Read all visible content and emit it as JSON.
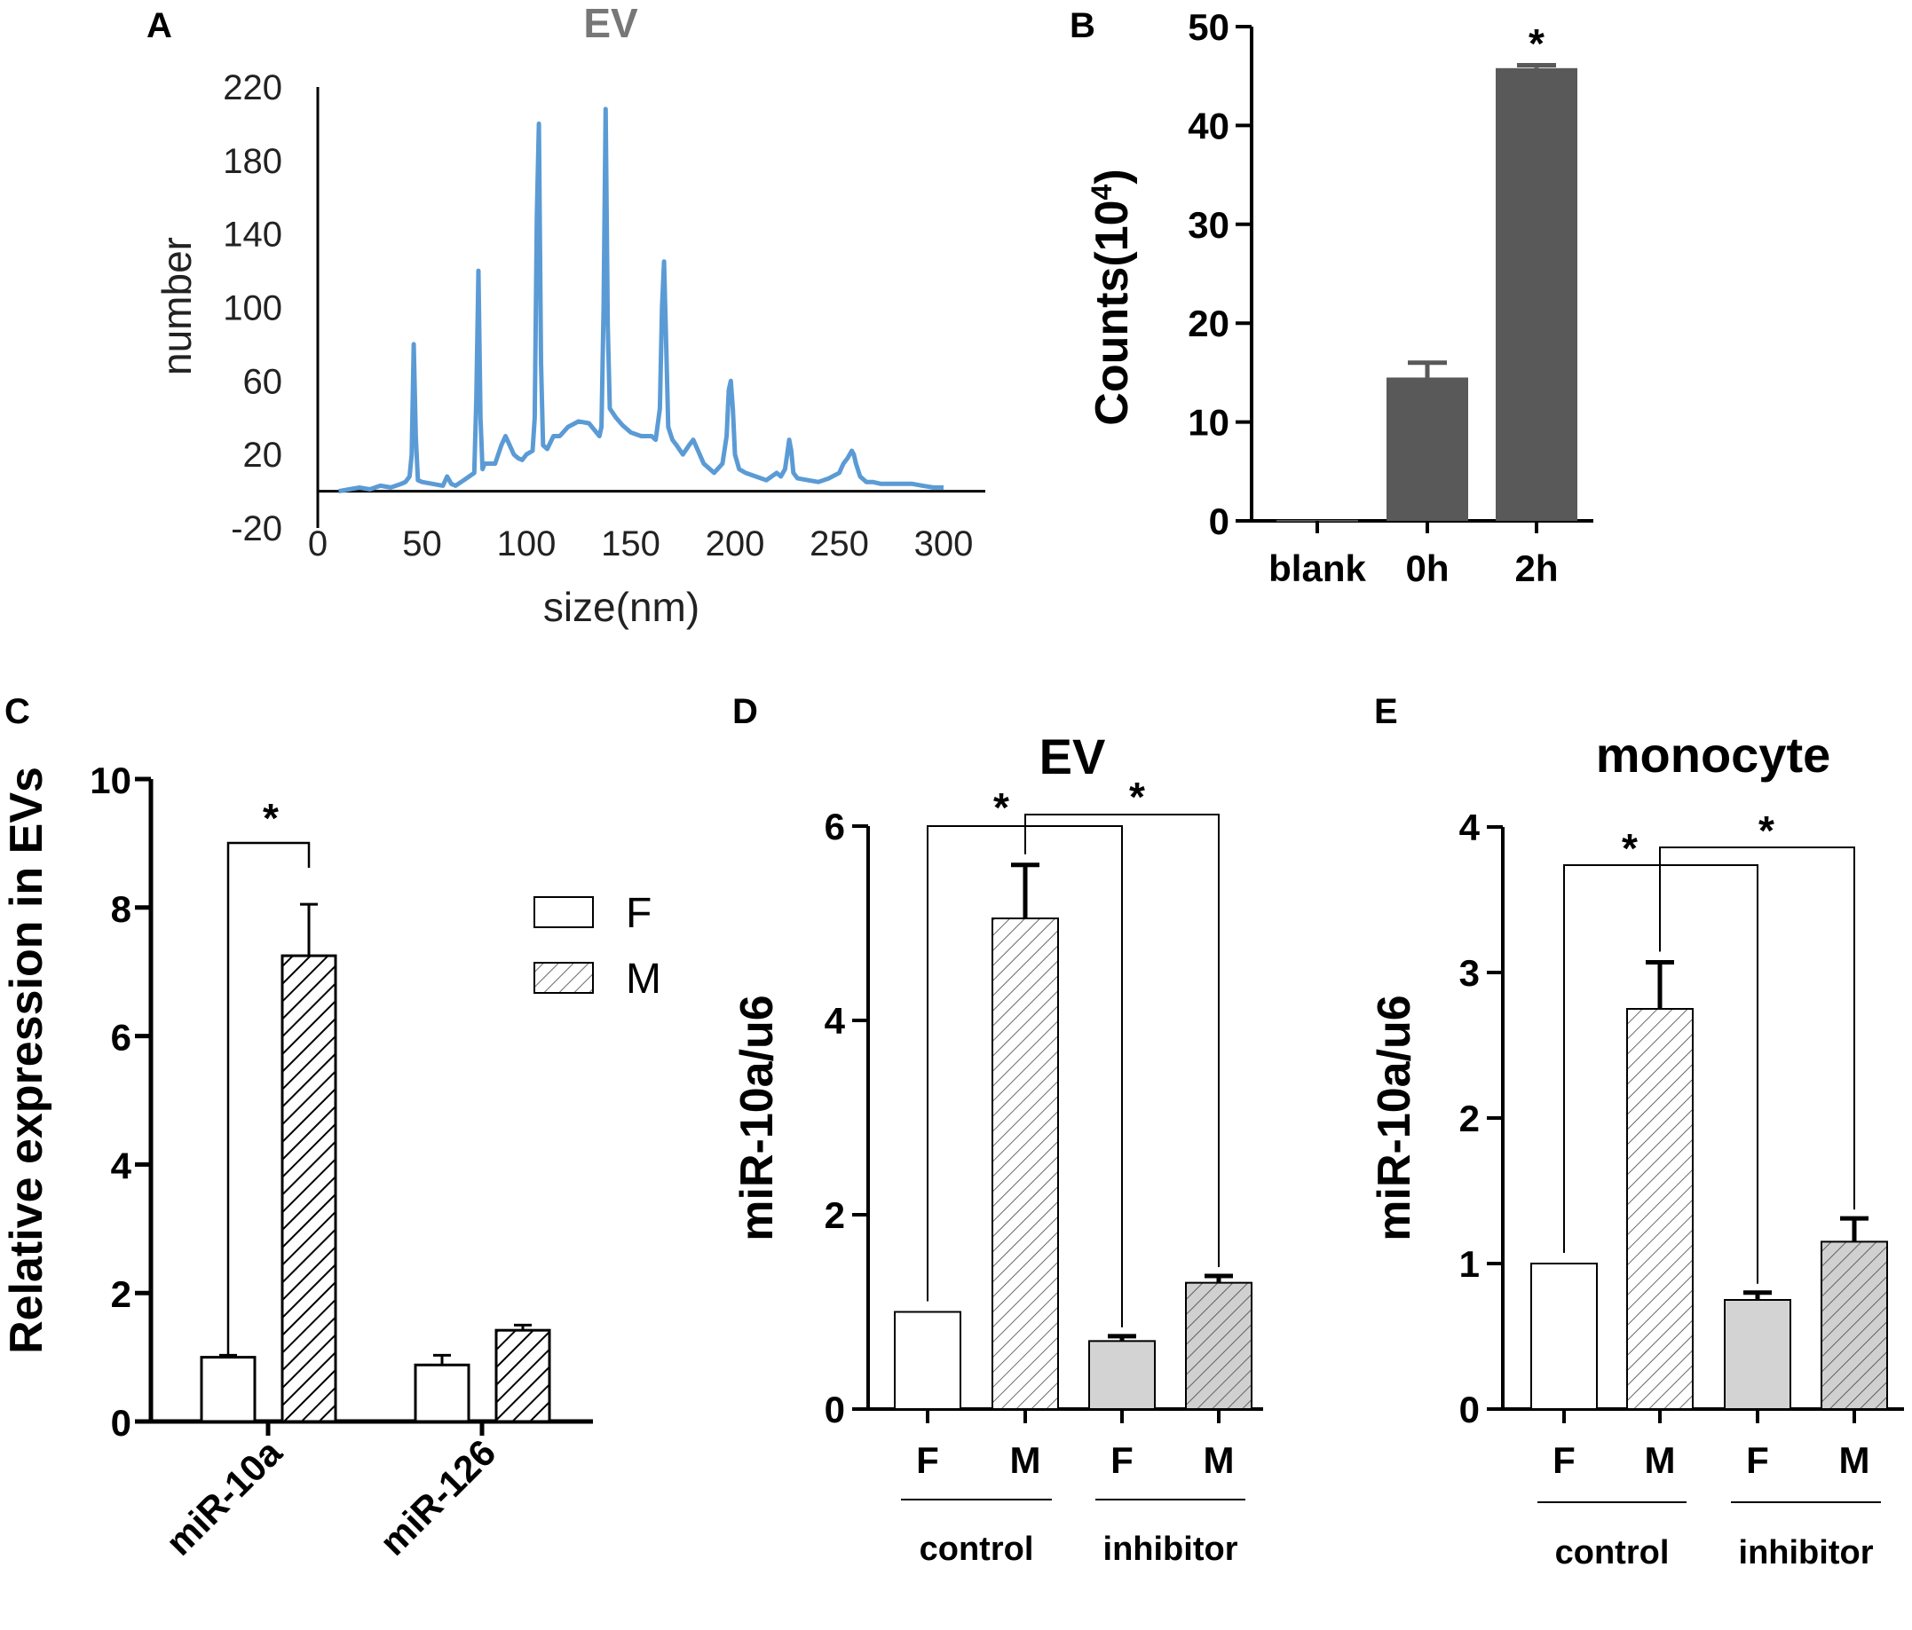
{
  "panels": {
    "A": {
      "label": "A"
    },
    "B": {
      "label": "B"
    },
    "C": {
      "label": "C"
    },
    "D": {
      "label": "D"
    },
    "E": {
      "label": "E"
    }
  },
  "chart_data": [
    {
      "id": "A",
      "type": "line",
      "title": "EV",
      "xlabel": "size(nm)",
      "ylabel": "number",
      "xlim": [
        0,
        320
      ],
      "ylim": [
        -20,
        220
      ],
      "xticks": [
        "0",
        "50",
        "100",
        "150",
        "200",
        "250",
        "300"
      ],
      "yticks": [
        "220",
        "180",
        "140",
        "100",
        "60",
        "20",
        "-20"
      ],
      "color": "#5b9bd5",
      "x": [
        10,
        15,
        20,
        25,
        30,
        35,
        40,
        42,
        44,
        45,
        46,
        47,
        48,
        50,
        55,
        60,
        62,
        64,
        66,
        70,
        75,
        76,
        77,
        78,
        79,
        80,
        85,
        88,
        90,
        92,
        94,
        96,
        98,
        100,
        103,
        104,
        105,
        106,
        107,
        108,
        110,
        113,
        116,
        120,
        125,
        130,
        135,
        136,
        137,
        138,
        139,
        140,
        143,
        146,
        150,
        155,
        160,
        162,
        164,
        165,
        166,
        167,
        168,
        170,
        172,
        175,
        178,
        180,
        185,
        190,
        194,
        196,
        197,
        198,
        199,
        200,
        202,
        205,
        210,
        215,
        220,
        222,
        224,
        225,
        226,
        227,
        228,
        230,
        235,
        240,
        245,
        250,
        252,
        254,
        256,
        257,
        258,
        260,
        263,
        266,
        270,
        275,
        280,
        285,
        290,
        295,
        300
      ],
      "y": [
        0,
        1,
        2,
        1,
        3,
        2,
        4,
        5,
        8,
        20,
        80,
        30,
        6,
        5,
        4,
        3,
        8,
        4,
        3,
        6,
        10,
        50,
        120,
        40,
        12,
        15,
        15,
        25,
        30,
        25,
        20,
        18,
        17,
        20,
        22,
        40,
        150,
        200,
        70,
        25,
        23,
        30,
        30,
        35,
        38,
        37,
        30,
        35,
        100,
        208,
        90,
        45,
        40,
        36,
        32,
        30,
        30,
        28,
        45,
        100,
        125,
        80,
        35,
        28,
        25,
        20,
        25,
        28,
        15,
        10,
        15,
        30,
        55,
        60,
        45,
        20,
        12,
        10,
        8,
        6,
        10,
        8,
        12,
        20,
        28,
        22,
        10,
        7,
        6,
        5,
        7,
        10,
        15,
        18,
        22,
        20,
        15,
        8,
        5,
        5,
        4,
        4,
        4,
        4,
        3,
        2,
        2
      ]
    },
    {
      "id": "B",
      "type": "bar",
      "categories": [
        "blank",
        "0h",
        "2h"
      ],
      "values": [
        0.1,
        14.5,
        45.8
      ],
      "errors": [
        0,
        1.5,
        0.3
      ],
      "significance": [
        "",
        "",
        "*"
      ],
      "ylabel": "Counts(10",
      "ylabel_sup": "4",
      "ylabel_close": ")",
      "ylim": [
        0,
        50
      ],
      "yticks": [
        "0",
        "10",
        "20",
        "30",
        "40",
        "50"
      ],
      "color": "#595959"
    },
    {
      "id": "C",
      "type": "bar",
      "categories": [
        "miR-10a",
        "miR-126"
      ],
      "series": [
        {
          "name": "F",
          "values": [
            1.0,
            0.88
          ],
          "errors": [
            0.03,
            0.15
          ],
          "fill": "white"
        },
        {
          "name": "M",
          "values": [
            7.25,
            1.42
          ],
          "errors": [
            0.8,
            0.08
          ],
          "fill": "hatch"
        }
      ],
      "ylabel": "Relative expression in EVs",
      "ylim": [
        0,
        10
      ],
      "yticks": [
        "0",
        "2",
        "4",
        "6",
        "8",
        "10"
      ],
      "significance": "*"
    },
    {
      "id": "D",
      "type": "bar",
      "title": "EV",
      "categories": [
        "F",
        "M",
        "F",
        "M"
      ],
      "groups": [
        "control",
        "inhibitor"
      ],
      "values": [
        1.0,
        5.05,
        0.7,
        1.3
      ],
      "errors": [
        0,
        0.55,
        0.05,
        0.07
      ],
      "fills": [
        "white",
        "hatch",
        "gray",
        "gray-hatch"
      ],
      "ylabel": "miR-10a/u6",
      "ylim": [
        0,
        6
      ],
      "yticks": [
        "0",
        "2",
        "4",
        "6"
      ],
      "significance": [
        "*",
        "*"
      ]
    },
    {
      "id": "E",
      "type": "bar",
      "title": "monocyte",
      "categories": [
        "F",
        "M",
        "F",
        "M"
      ],
      "groups": [
        "control",
        "inhibitor"
      ],
      "values": [
        1.0,
        2.75,
        0.75,
        1.15
      ],
      "errors": [
        0,
        0.32,
        0.05,
        0.16
      ],
      "fills": [
        "white",
        "hatch",
        "gray",
        "gray-hatch"
      ],
      "ylabel": "miR-10a/u6",
      "ylim": [
        0,
        4
      ],
      "yticks": [
        "0",
        "1",
        "2",
        "3",
        "4"
      ],
      "significance": [
        "*",
        "*"
      ]
    }
  ]
}
